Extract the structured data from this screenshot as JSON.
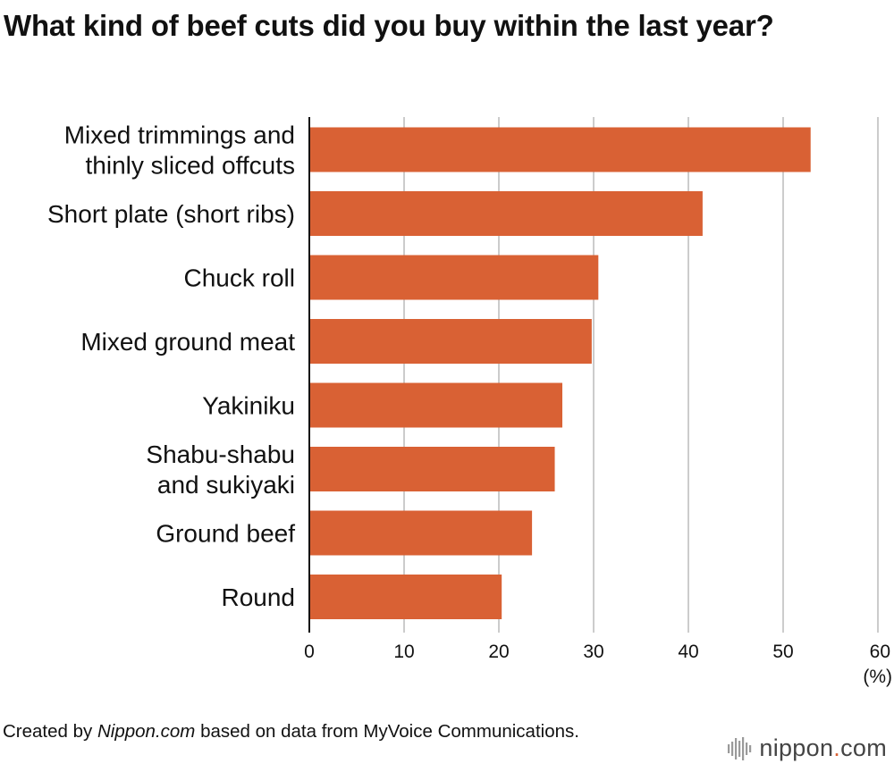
{
  "title": "What kind of beef cuts did you buy within the last year?",
  "chart_data": {
    "type": "bar",
    "orientation": "horizontal",
    "categories": [
      "Mixed trimmings and|thinly sliced offcuts",
      "Short plate (short ribs)",
      "Chuck roll",
      "Mixed ground meat",
      "Yakiniku",
      "Shabu-shabu|and sukiyaki",
      "Ground beef",
      "Round"
    ],
    "values": [
      52.9,
      41.5,
      30.5,
      29.8,
      26.7,
      25.9,
      23.5,
      20.3
    ],
    "xlim": [
      0,
      60
    ],
    "xticks": [
      "0",
      "10",
      "20",
      "30",
      "40",
      "50",
      "60"
    ],
    "unit_label": "(%)",
    "grid": true,
    "bar_color": "#d96134",
    "grid_color": "#cccccc"
  },
  "footer": {
    "prefix": "Created by ",
    "brand": "Nippon.com",
    "suffix": " based on data from MyVoice Communications."
  },
  "logo": {
    "name": "nippon",
    "dot": ".",
    "tld": "com",
    "icon": "soundwave-icon"
  }
}
